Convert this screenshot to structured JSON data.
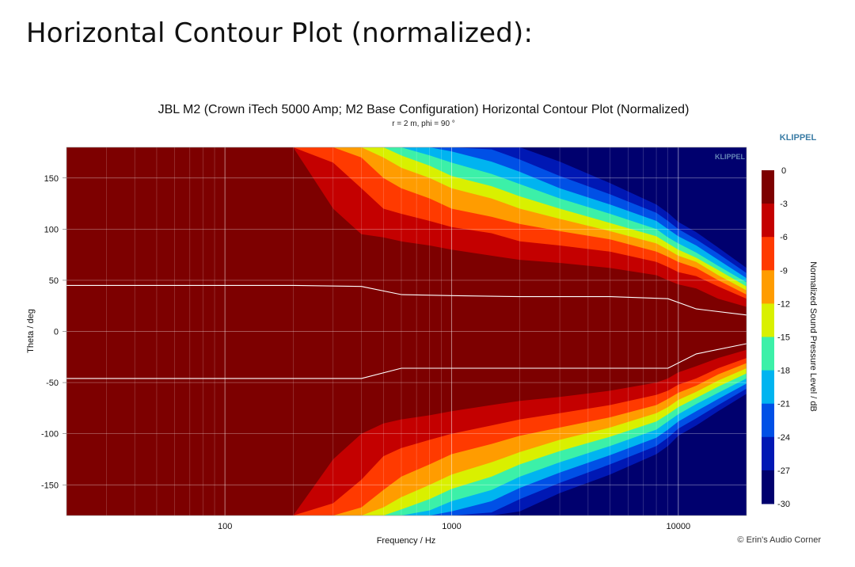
{
  "page": {
    "heading": "Horizontal Contour Plot (normalized):",
    "credit": "© Erin's Audio Corner"
  },
  "colors": {
    "background": "#ffffff",
    "plot_outside": "#f7f7f7",
    "brand": "#3a7ca5",
    "iso_line": "#ffffff"
  },
  "chart_data": {
    "type": "heatmap",
    "title": "JBL M2 (Crown iTech 5000 Amp; M2 Base Configuration) Horizontal Contour Plot (Normalized)",
    "subtitle": "r = 2 m, phi = 90 °",
    "brand": "KLIPPEL",
    "brand_watermark": "KLIPPEL",
    "xlabel": "Frequency / Hz",
    "ylabel": "Theta / deg",
    "x_scale": "log",
    "xlim": [
      20,
      20000
    ],
    "ylim": [
      -180,
      180
    ],
    "x_ticks": [
      {
        "value": 100,
        "label": "100"
      },
      {
        "value": 1000,
        "label": "1000"
      },
      {
        "value": 10000,
        "label": "10000"
      }
    ],
    "y_ticks": [
      {
        "value": 150,
        "label": "150"
      },
      {
        "value": 100,
        "label": "100"
      },
      {
        "value": 50,
        "label": "50"
      },
      {
        "value": 0,
        "label": "0"
      },
      {
        "value": -50,
        "label": "-50"
      },
      {
        "value": -100,
        "label": "-100"
      },
      {
        "value": -150,
        "label": "-150"
      }
    ],
    "grid": true,
    "colorbar": {
      "label": "Normalized Sound Pressure Level / dB",
      "range": [
        -30,
        0
      ],
      "placement": "right",
      "ticks": [
        {
          "value": 0,
          "label": "0"
        },
        {
          "value": -3,
          "label": "-3"
        },
        {
          "value": -6,
          "label": "-6"
        },
        {
          "value": -9,
          "label": "-9"
        },
        {
          "value": -12,
          "label": "-12"
        },
        {
          "value": -15,
          "label": "-15"
        },
        {
          "value": -18,
          "label": "-18"
        },
        {
          "value": -21,
          "label": "-21"
        },
        {
          "value": -24,
          "label": "-24"
        },
        {
          "value": -27,
          "label": "-27"
        },
        {
          "value": -30,
          "label": "-30"
        }
      ],
      "bands": [
        {
          "from": 0,
          "to": -3,
          "color": "#7d0000"
        },
        {
          "from": -3,
          "to": -6,
          "color": "#c40000"
        },
        {
          "from": -6,
          "to": -9,
          "color": "#ff3a00"
        },
        {
          "from": -9,
          "to": -12,
          "color": "#ff9c00"
        },
        {
          "from": -12,
          "to": -15,
          "color": "#d9f000"
        },
        {
          "from": -15,
          "to": -18,
          "color": "#3cf0a8"
        },
        {
          "from": -18,
          "to": -21,
          "color": "#00b4f0"
        },
        {
          "from": -21,
          "to": -24,
          "color": "#0050e6"
        },
        {
          "from": -24,
          "to": -27,
          "color": "#0018b4"
        },
        {
          "from": -27,
          "to": -30,
          "color": "#00006e"
        }
      ]
    },
    "contour_boundaries": {
      "frequencies": [
        20,
        200,
        300,
        400,
        500,
        600,
        800,
        1000,
        1500,
        2000,
        3000,
        5000,
        8000,
        9000,
        10000,
        12000,
        15000,
        20000
      ],
      "levels": [
        -3,
        -6,
        -9,
        -12,
        -15,
        -18,
        -21,
        -24,
        -27
      ],
      "upper_deg": [
        [
          180,
          180,
          120,
          95,
          92,
          88,
          84,
          80,
          74,
          70,
          67,
          62,
          55,
          50,
          46,
          42,
          32,
          24
        ],
        [
          180,
          180,
          165,
          140,
          120,
          115,
          108,
          102,
          96,
          88,
          84,
          78,
          68,
          63,
          58,
          54,
          44,
          32
        ],
        [
          180,
          180,
          180,
          170,
          150,
          140,
          130,
          120,
          112,
          105,
          98,
          90,
          78,
          73,
          68,
          62,
          50,
          36
        ],
        [
          180,
          180,
          180,
          180,
          170,
          160,
          150,
          140,
          130,
          120,
          110,
          98,
          86,
          80,
          74,
          68,
          55,
          40
        ],
        [
          180,
          180,
          180,
          180,
          180,
          172,
          162,
          152,
          142,
          132,
          120,
          106,
          93,
          86,
          80,
          72,
          60,
          44
        ],
        [
          180,
          180,
          180,
          180,
          180,
          180,
          172,
          165,
          154,
          144,
          130,
          115,
          100,
          92,
          86,
          77,
          64,
          48
        ],
        [
          180,
          180,
          180,
          180,
          180,
          180,
          180,
          176,
          166,
          156,
          140,
          124,
          108,
          100,
          93,
          84,
          70,
          52
        ],
        [
          180,
          180,
          180,
          180,
          180,
          180,
          180,
          180,
          178,
          168,
          152,
          134,
          116,
          108,
          100,
          90,
          76,
          57
        ],
        [
          180,
          180,
          180,
          180,
          180,
          180,
          180,
          180,
          180,
          180,
          166,
          145,
          124,
          116,
          107,
          97,
          82,
          62
        ]
      ],
      "lower_deg": [
        [
          -180,
          -180,
          -125,
          -100,
          -90,
          -86,
          -82,
          -78,
          -72,
          -68,
          -64,
          -58,
          -50,
          -46,
          -40,
          -34,
          -26,
          -18
        ],
        [
          -180,
          -180,
          -168,
          -145,
          -122,
          -114,
          -106,
          -100,
          -92,
          -86,
          -80,
          -72,
          -62,
          -58,
          -52,
          -46,
          -36,
          -26
        ],
        [
          -180,
          -180,
          -180,
          -172,
          -155,
          -142,
          -130,
          -120,
          -110,
          -102,
          -94,
          -84,
          -72,
          -66,
          -60,
          -53,
          -42,
          -31
        ],
        [
          -180,
          -180,
          -180,
          -180,
          -172,
          -162,
          -150,
          -140,
          -128,
          -118,
          -106,
          -94,
          -80,
          -74,
          -67,
          -59,
          -48,
          -36
        ],
        [
          -180,
          -180,
          -180,
          -180,
          -180,
          -174,
          -164,
          -154,
          -142,
          -130,
          -117,
          -103,
          -88,
          -81,
          -74,
          -65,
          -54,
          -41
        ],
        [
          -180,
          -180,
          -180,
          -180,
          -180,
          -180,
          -175,
          -166,
          -155,
          -142,
          -128,
          -112,
          -96,
          -88,
          -81,
          -71,
          -60,
          -46
        ],
        [
          -180,
          -180,
          -180,
          -180,
          -180,
          -180,
          -180,
          -176,
          -166,
          -153,
          -138,
          -121,
          -104,
          -96,
          -88,
          -78,
          -66,
          -51
        ],
        [
          -180,
          -180,
          -180,
          -180,
          -180,
          -180,
          -180,
          -180,
          -177,
          -164,
          -148,
          -130,
          -112,
          -104,
          -95,
          -85,
          -72,
          -56
        ],
        [
          -180,
          -180,
          -180,
          -180,
          -180,
          -180,
          -180,
          -180,
          -180,
          -176,
          -158,
          -140,
          -120,
          -112,
          -102,
          -92,
          -78,
          -61
        ]
      ]
    },
    "iso_line": {
      "level": -6,
      "frequencies": [
        20,
        200,
        400,
        600,
        1000,
        2000,
        5000,
        9000,
        12000,
        20000
      ],
      "upper_deg": [
        45,
        45,
        44,
        36,
        35,
        34,
        34,
        32,
        22,
        16
      ],
      "lower_deg": [
        -46,
        -46,
        -46,
        -36,
        -36,
        -36,
        -36,
        -36,
        -22,
        -12
      ]
    }
  }
}
